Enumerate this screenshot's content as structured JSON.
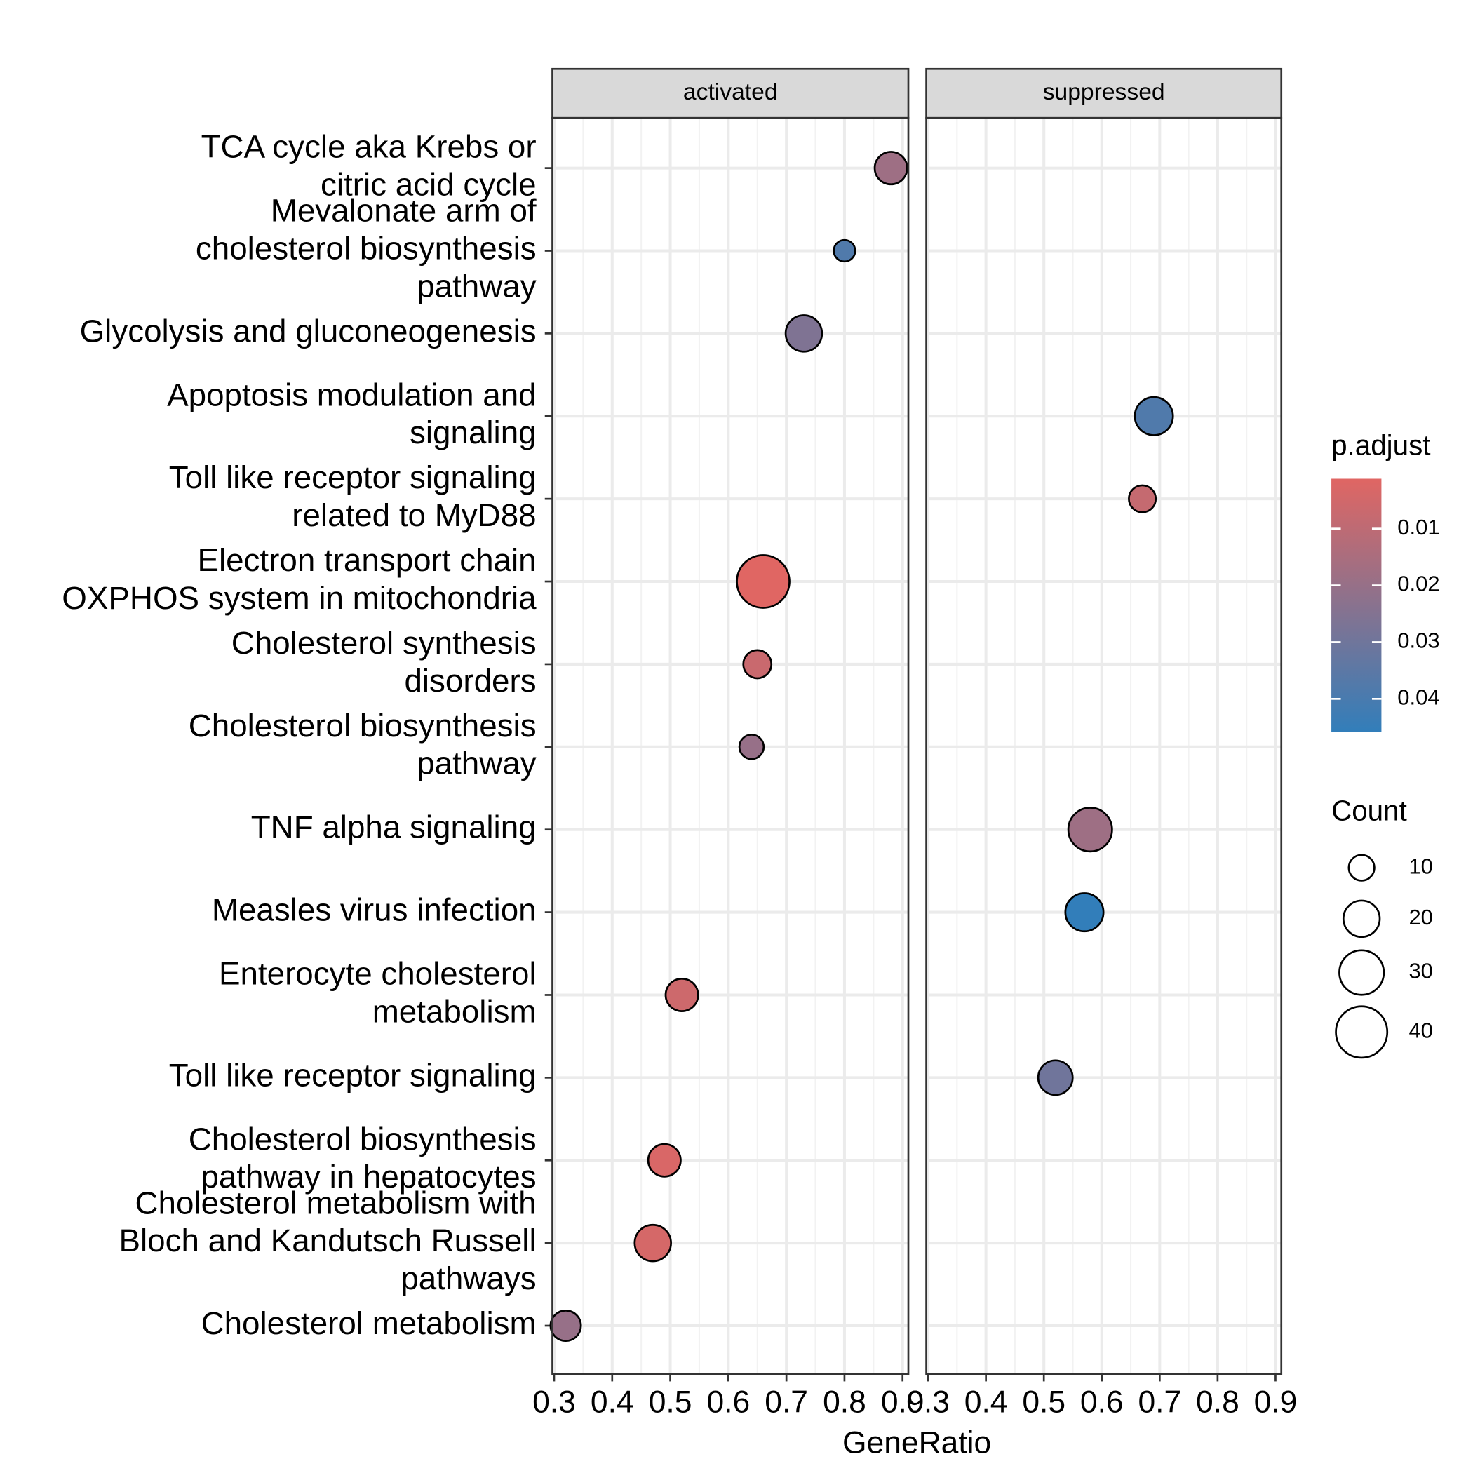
{
  "chart_data": {
    "type": "dot",
    "facets": [
      "activated",
      "suppressed"
    ],
    "x_label": "GeneRatio",
    "xlim": [
      0.297,
      0.91
    ],
    "xticks": [
      0.3,
      0.4,
      0.5,
      0.6,
      0.7,
      0.8,
      0.9
    ],
    "grid": true,
    "points": [
      {
        "label": "TCA cycle aka Krebs or\ncitric acid cycle",
        "facet": "activated",
        "x": 0.88,
        "count": 16,
        "p_adjust": 0.018
      },
      {
        "label": "Mevalonate arm of\ncholesterol biosynthesis\npathway",
        "facet": "activated",
        "x": 0.8,
        "count": 7,
        "p_adjust": 0.038
      },
      {
        "label": "Glycolysis and gluconeogenesis",
        "facet": "activated",
        "x": 0.73,
        "count": 20,
        "p_adjust": 0.026
      },
      {
        "label": "Apoptosis modulation and\nsignaling",
        "facet": "suppressed",
        "x": 0.69,
        "count": 22,
        "p_adjust": 0.038
      },
      {
        "label": "Toll like receptor signaling\nrelated to MyD88",
        "facet": "suppressed",
        "x": 0.67,
        "count": 11,
        "p_adjust": 0.008
      },
      {
        "label": "Electron transport chain\nOXPHOS system in mitochondria",
        "facet": "activated",
        "x": 0.66,
        "count": 42,
        "p_adjust": 0.0012
      },
      {
        "label": "Cholesterol synthesis\ndisorders",
        "facet": "activated",
        "x": 0.65,
        "count": 12,
        "p_adjust": 0.007
      },
      {
        "label": "Cholesterol biosynthesis\npathway",
        "facet": "activated",
        "x": 0.64,
        "count": 9,
        "p_adjust": 0.02
      },
      {
        "label": "TNF alpha signaling",
        "facet": "suppressed",
        "x": 0.58,
        "count": 29,
        "p_adjust": 0.018
      },
      {
        "label": "Measles virus infection",
        "facet": "suppressed",
        "x": 0.57,
        "count": 22,
        "p_adjust": 0.0458
      },
      {
        "label": "Enterocyte cholesterol\nmetabolism",
        "facet": "activated",
        "x": 0.52,
        "count": 16,
        "p_adjust": 0.006
      },
      {
        "label": "Toll like receptor signaling",
        "facet": "suppressed",
        "x": 0.52,
        "count": 18,
        "p_adjust": 0.03
      },
      {
        "label": "Cholesterol biosynthesis\npathway in hepatocytes",
        "facet": "activated",
        "x": 0.49,
        "count": 16,
        "p_adjust": 0.003
      },
      {
        "label": "Cholesterol metabolism with\nBloch and Kandutsch Russell\npathways",
        "facet": "activated",
        "x": 0.47,
        "count": 20,
        "p_adjust": 0.004
      },
      {
        "label": "Cholesterol metabolism",
        "facet": "activated",
        "x": 0.32,
        "count": 14,
        "p_adjust": 0.02
      }
    ],
    "color_legend": {
      "title": "p.adjust",
      "lim": [
        0.0012,
        0.0458
      ],
      "ticks": [
        0.01,
        0.02,
        0.03,
        0.04
      ],
      "low_color": "#e06663",
      "high_color": "#327eba"
    },
    "size_legend": {
      "title": "Count",
      "values": [
        10,
        20,
        30,
        40
      ]
    }
  }
}
